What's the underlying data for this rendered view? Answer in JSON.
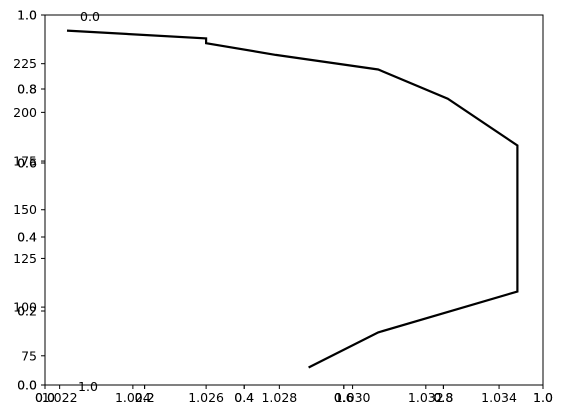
{
  "chart_data": [
    {
      "type": "line",
      "title": "",
      "xlabel": "",
      "ylabel": "",
      "xlim": [
        1.0216,
        1.0352
      ],
      "ylim": [
        60,
        250
      ],
      "x_ticks": [
        "1.022",
        "1.024",
        "1.026",
        "1.028",
        "1.030",
        "1.032",
        "1.034"
      ],
      "y_ticks": [
        "75",
        "100",
        "125",
        "150",
        "175",
        "200",
        "225"
      ],
      "series": [
        {
          "values": [
            {
              "x": 1.0222,
              "y": 242
            },
            {
              "x": 1.026,
              "y": 238
            },
            {
              "x": 1.026,
              "y": 235.5
            },
            {
              "x": 1.0279,
              "y": 229.5
            },
            {
              "x": 1.0307,
              "y": 222
            },
            {
              "x": 1.0326,
              "y": 207
            },
            {
              "x": 1.0345,
              "y": 183
            },
            {
              "x": 1.0345,
              "y": 108
            },
            {
              "x": 1.0307,
              "y": 87
            },
            {
              "x": 1.0288,
              "y": 69
            }
          ],
          "color": "#000000"
        }
      ]
    },
    {
      "type": "line",
      "overlay": "empty axes",
      "xlim": [
        0,
        1
      ],
      "ylim": [
        0,
        1
      ],
      "x_ticks": [
        "0.0",
        "0.2",
        "0.4",
        "0.6",
        "0.8",
        "1.0"
      ],
      "y_ticks": [
        "0.0",
        "0.2",
        "0.4",
        "0.6",
        "0.8",
        "1.0"
      ]
    },
    {
      "type": "line",
      "overlay": "empty axes",
      "xlim": [
        0,
        1
      ],
      "ylim": [
        0,
        1
      ],
      "x_ticks": [
        "0.0",
        "0.2",
        "0.4",
        "0.6",
        "0.8",
        "1.0"
      ],
      "y_ticks": [
        "0.0",
        "0.2",
        "0.4",
        "0.6",
        "0.8",
        "1.0"
      ]
    },
    {
      "type": "line",
      "overlay": "stray tick labels",
      "labels": [
        "0.0",
        "1.0"
      ]
    }
  ]
}
